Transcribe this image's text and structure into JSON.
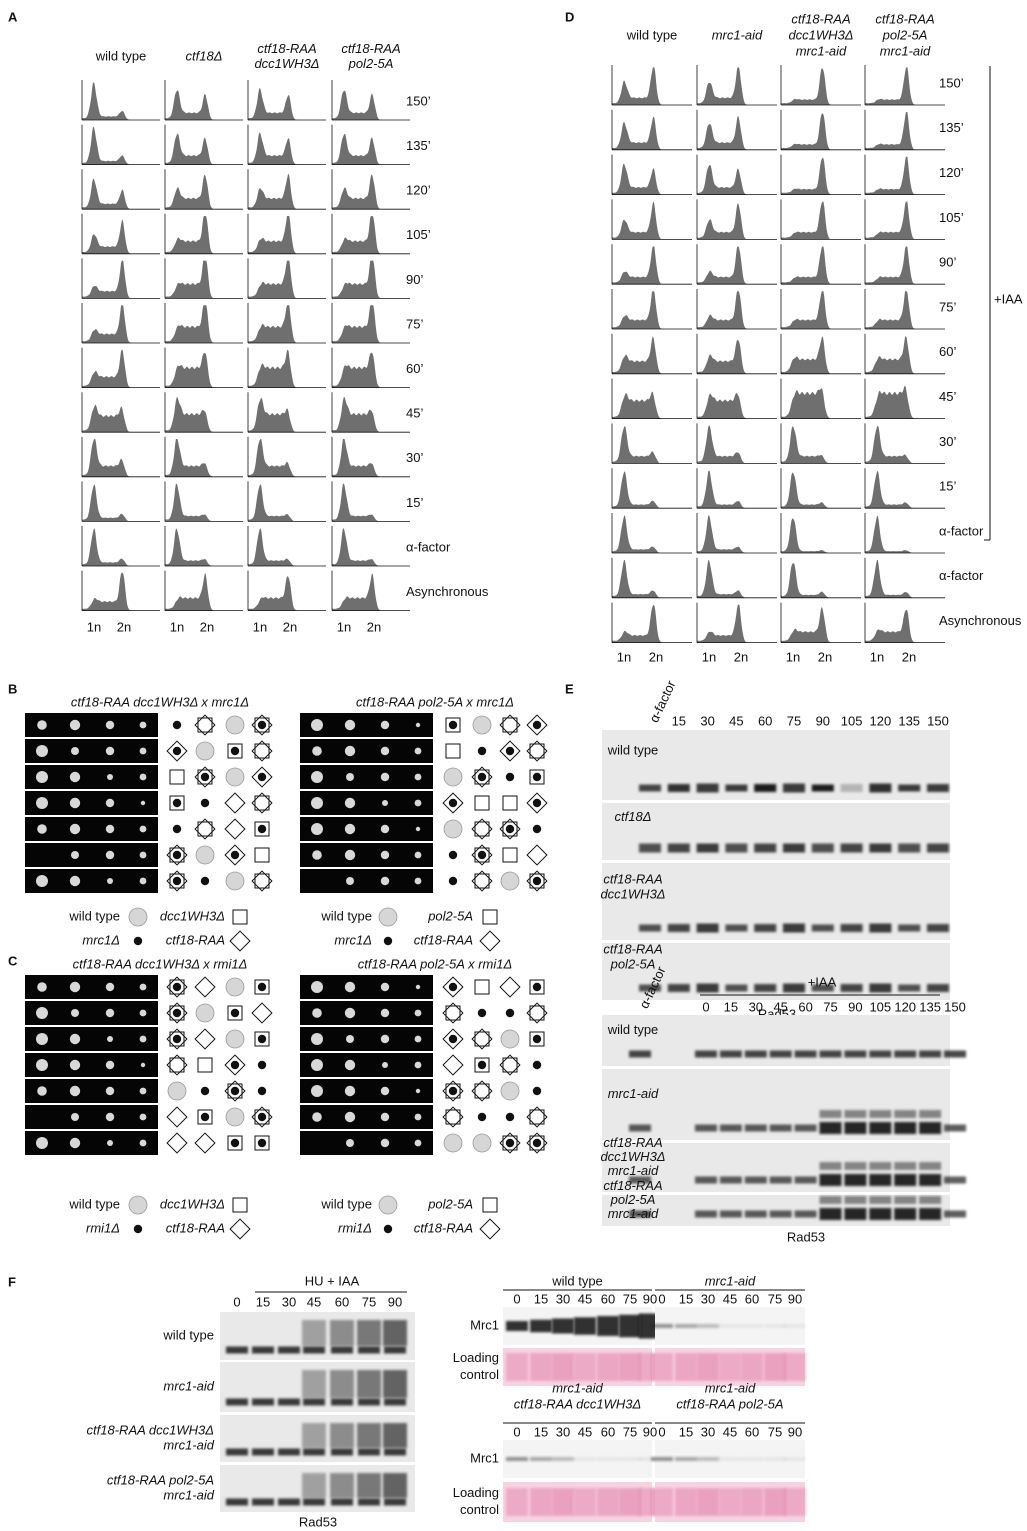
{
  "panel_a": {
    "label": "A",
    "columns": [
      [
        "wild type"
      ],
      [
        "ctf18Δ"
      ],
      [
        "ctf18-RAA",
        "dcc1WH3Δ"
      ],
      [
        "ctf18-RAA",
        "pol2-5A"
      ]
    ],
    "rows": [
      "150’",
      "135’",
      "120’",
      "105’",
      "90’",
      "75’",
      "60’",
      "45’",
      "30’",
      "15’",
      "α-factor",
      "Asynchronous"
    ],
    "x_labels": [
      "1n",
      "2n"
    ]
  },
  "panel_d": {
    "label": "D",
    "columns": [
      [
        "wild type"
      ],
      [
        "mrc1-aid"
      ],
      [
        "ctf18-RAA",
        "dcc1WH3Δ",
        "mrc1-aid"
      ],
      [
        "ctf18-RAA",
        "pol2-5A",
        "mrc1-aid"
      ]
    ],
    "rows": [
      "150’",
      "135’",
      "120’",
      "105’",
      "90’",
      "75’",
      "60’",
      "45’",
      "30’",
      "15’",
      "α-factor",
      "α-factor",
      "Asynchronous"
    ],
    "x_labels": [
      "1n",
      "2n"
    ],
    "bracket": "+IAA"
  },
  "panel_b": {
    "label": "B",
    "crosses": [
      {
        "title": "ctf18-RAA dcc1WH3Δ x mrc1Δ",
        "legend": [
          [
            "wild type",
            "dcc1WH3Δ"
          ],
          [
            "mrc1Δ",
            "ctf18-RAA"
          ]
        ]
      },
      {
        "title": "ctf18-RAA pol2-5A x mrc1Δ",
        "legend": [
          [
            "wild type",
            "pol2-5A"
          ],
          [
            "mrc1Δ",
            "ctf18-RAA"
          ]
        ]
      }
    ]
  },
  "panel_c": {
    "label": "C",
    "crosses": [
      {
        "title": "ctf18-RAA dcc1WH3Δ x rmi1Δ",
        "legend": [
          [
            "wild type",
            "dcc1WH3Δ"
          ],
          [
            "rmi1Δ",
            "ctf18-RAA"
          ]
        ]
      },
      {
        "title": "ctf18-RAA pol2-5A x rmi1Δ",
        "legend": [
          [
            "wild type",
            "pol2-5A"
          ],
          [
            "rmi1Δ",
            "ctf18-RAA"
          ]
        ]
      }
    ]
  },
  "panel_e": {
    "label": "E",
    "blots": [
      {
        "lanes": [
          "α-factor",
          "15",
          "30",
          "45",
          "60",
          "75",
          "90",
          "105",
          "120",
          "135",
          "150"
        ],
        "rows": [
          [
            "wild type"
          ],
          [
            "ctf18Δ"
          ],
          [
            "ctf18-RAA",
            "dcc1WH3Δ"
          ],
          [
            "ctf18-RAA",
            "pol2-5A"
          ]
        ],
        "caption": "Rad53"
      },
      {
        "treatment": "+IAA",
        "lanes": [
          "α-factor",
          "0",
          "15",
          "30",
          "45",
          "60",
          "75",
          "90",
          "105",
          "120",
          "135",
          "150"
        ],
        "rows": [
          [
            "wild type"
          ],
          [
            "mrc1-aid"
          ],
          [
            "ctf18-RAA",
            "dcc1WH3Δ",
            "mrc1-aid"
          ],
          [
            "ctf18-RAA",
            "pol2-5A",
            "mrc1-aid"
          ]
        ],
        "caption": "Rad53"
      }
    ]
  },
  "panel_f": {
    "label": "F",
    "rad53": {
      "treatment": "HU + IAA",
      "lanes": [
        "0",
        "15",
        "30",
        "45",
        "60",
        "75",
        "90"
      ],
      "rows": [
        [
          "wild type"
        ],
        [
          "mrc1-aid"
        ],
        [
          "ctf18-RAA dcc1WH3Δ",
          "mrc1-aid"
        ],
        [
          "ctf18-RAA pol2-5A",
          "mrc1-aid"
        ]
      ],
      "caption": "Rad53"
    },
    "mrc1": [
      {
        "groups": [
          {
            "name": [
              "wild type"
            ],
            "lanes": [
              "0",
              "15",
              "30",
              "45",
              "60",
              "75",
              "90"
            ]
          },
          {
            "name": [
              "mrc1-aid"
            ],
            "lanes": [
              "0",
              "15",
              "30",
              "45",
              "60",
              "75",
              "90"
            ]
          }
        ],
        "rows": [
          [
            "Mrc1"
          ],
          [
            "Loading",
            "control"
          ]
        ]
      },
      {
        "groups": [
          {
            "name": [
              "mrc1-aid",
              "ctf18-RAA dcc1WH3Δ"
            ],
            "lanes": [
              "0",
              "15",
              "30",
              "45",
              "60",
              "75",
              "90"
            ]
          },
          {
            "name": [
              "mrc1-aid",
              "ctf18-RAA pol2-5A"
            ],
            "lanes": [
              "0",
              "15",
              "30",
              "45",
              "60",
              "75",
              "90"
            ]
          }
        ],
        "rows": [
          [
            "Mrc1"
          ],
          [
            "Loading",
            "control"
          ]
        ]
      }
    ]
  }
}
